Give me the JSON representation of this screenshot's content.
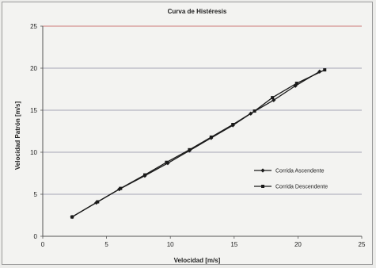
{
  "chart_data": {
    "type": "line",
    "title": "Curva de Histéresis",
    "xlabel": "Velocidad [m/s]",
    "ylabel": "Velocidad Patrón [m/s]",
    "xlim": [
      0,
      25
    ],
    "ylim": [
      0,
      25
    ],
    "xticks": [
      "0",
      "5",
      "10",
      "15",
      "20",
      "25"
    ],
    "yticks": [
      "0",
      "5",
      "10",
      "15",
      "20",
      "25"
    ],
    "grid": "horizontal",
    "legend_position": "right",
    "series": [
      {
        "name": "Corrida Ascendente",
        "marker": "diamond",
        "x": [
          2.3,
          4.2,
          6.0,
          8.0,
          9.8,
          11.5,
          13.2,
          14.9,
          16.3,
          18.1,
          19.8,
          21.7
        ],
        "y": [
          2.3,
          4.0,
          5.6,
          7.2,
          8.7,
          10.2,
          11.7,
          13.2,
          14.6,
          16.2,
          17.9,
          19.6
        ]
      },
      {
        "name": "Corrida Descendente",
        "marker": "square",
        "x": [
          2.3,
          4.3,
          6.1,
          8.0,
          9.7,
          11.5,
          13.2,
          14.9,
          16.6,
          18.0,
          19.9,
          22.1
        ],
        "y": [
          2.3,
          4.1,
          5.7,
          7.3,
          8.8,
          10.3,
          11.8,
          13.3,
          14.9,
          16.5,
          18.2,
          19.8
        ]
      }
    ],
    "colors": {
      "line": "#1a1a1a",
      "grid": "#8a8aa0",
      "axis": "#555555",
      "top_grid": "#c0504d"
    }
  }
}
